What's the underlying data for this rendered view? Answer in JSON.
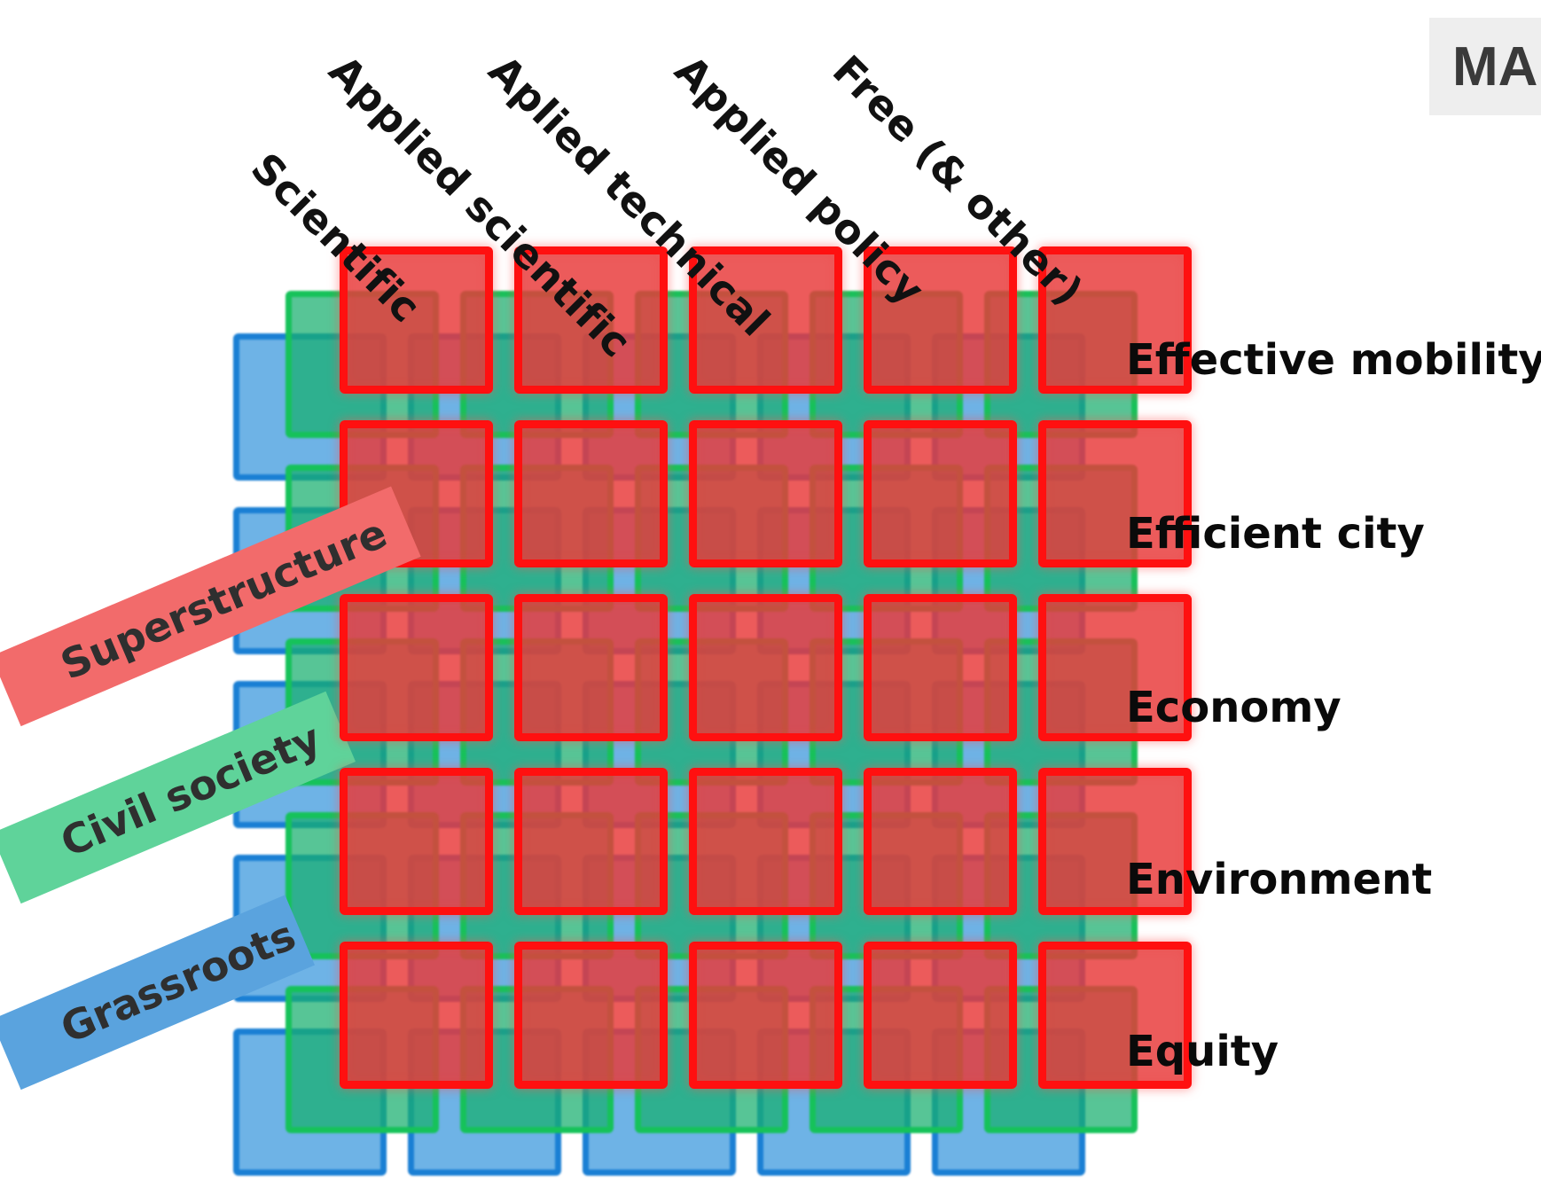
{
  "colors": {
    "grassroots": "#1a7fd4",
    "civil_society": "#16c25a",
    "superstructure": "#ff1010"
  },
  "corner_tag": "MA",
  "columns": [
    "Scientific",
    "Applied scientific",
    "Aplied technical",
    "Applied policy",
    "Free (& other)"
  ],
  "rows": [
    "Effective mobility",
    "Efficient city",
    "Economy",
    "Environment",
    "Equity"
  ],
  "layers": [
    {
      "label": "Superstructure",
      "color": "#f26b6b"
    },
    {
      "label": "Civil society",
      "color": "#5fd39a"
    },
    {
      "label": "Grassroots",
      "color": "#5aa3de"
    }
  ]
}
